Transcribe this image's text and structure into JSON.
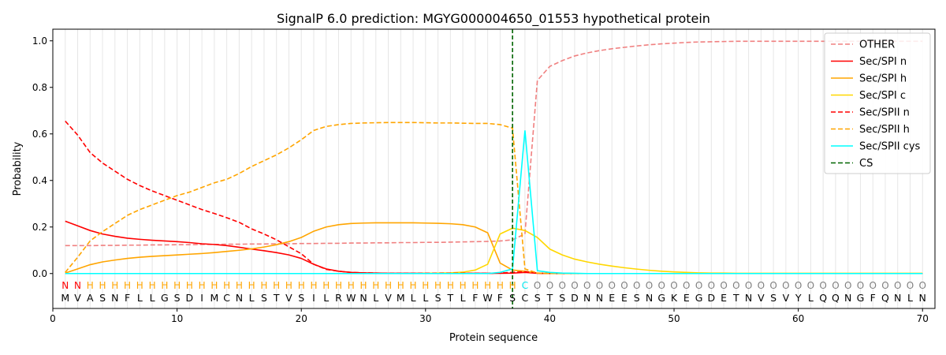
{
  "chart_data": {
    "type": "line",
    "title": "SignalP 6.0 prediction: MGYG000004650_01553 hypothetical protein",
    "xlabel": "Protein sequence",
    "ylabel": "Probability",
    "xlim": [
      0,
      71
    ],
    "ylim": [
      -0.15,
      1.05
    ],
    "x_ticks": [
      0,
      10,
      20,
      30,
      40,
      50,
      60,
      70
    ],
    "y_ticks": [
      0.0,
      0.2,
      0.4,
      0.6,
      0.8,
      1.0
    ],
    "x_tick_labels": [
      "0",
      "10",
      "20",
      "30",
      "40",
      "50",
      "60",
      "70"
    ],
    "y_tick_labels": [
      "0.0",
      "0.2",
      "0.4",
      "0.6",
      "0.8",
      "1.0"
    ],
    "grid": "vertical lines at each residue",
    "legend_position": "top-right",
    "sequence": [
      "M",
      "V",
      "A",
      "S",
      "N",
      "F",
      "L",
      "L",
      "G",
      "S",
      "D",
      "I",
      "M",
      "C",
      "N",
      "L",
      "S",
      "T",
      "V",
      "S",
      "I",
      "L",
      "R",
      "W",
      "N",
      "L",
      "V",
      "M",
      "L",
      "L",
      "S",
      "T",
      "L",
      "F",
      "W",
      "F",
      "S",
      "C",
      "S",
      "T",
      "S",
      "D",
      "N",
      "N",
      "E",
      "E",
      "S",
      "N",
      "G",
      "K",
      "E",
      "G",
      "D",
      "E",
      "T",
      "N",
      "V",
      "S",
      "V",
      "Y",
      "L",
      "Q",
      "Q",
      "N",
      "G",
      "F",
      "Q",
      "N",
      "L",
      "N"
    ],
    "region_labels": [
      "N",
      "N",
      "H",
      "H",
      "H",
      "H",
      "H",
      "H",
      "H",
      "H",
      "H",
      "H",
      "H",
      "H",
      "H",
      "H",
      "H",
      "H",
      "H",
      "H",
      "H",
      "H",
      "H",
      "H",
      "H",
      "H",
      "H",
      "H",
      "H",
      "H",
      "H",
      "H",
      "H",
      "H",
      "H",
      "H",
      "H",
      "C",
      "O",
      "O",
      "O",
      "O",
      "O",
      "O",
      "O",
      "O",
      "O",
      "O",
      "O",
      "O",
      "O",
      "O",
      "O",
      "O",
      "O",
      "O",
      "O",
      "O",
      "O",
      "O",
      "O",
      "O",
      "O",
      "O",
      "O",
      "O",
      "O",
      "O",
      "O",
      "O"
    ],
    "region_colors": {
      "N": "#ff0000",
      "H": "#ffa500",
      "C": "#00e5ee",
      "O": "#808080"
    },
    "cleavage_site": 37,
    "series": [
      {
        "name": "OTHER",
        "color": "#f08080",
        "dash": "dashed",
        "values": [
          0.12,
          0.12,
          0.12,
          0.121,
          0.121,
          0.122,
          0.122,
          0.123,
          0.123,
          0.124,
          0.124,
          0.125,
          0.125,
          0.126,
          0.126,
          0.127,
          0.127,
          0.128,
          0.128,
          0.129,
          0.129,
          0.13,
          0.13,
          0.131,
          0.131,
          0.132,
          0.132,
          0.133,
          0.133,
          0.134,
          0.134,
          0.135,
          0.136,
          0.137,
          0.138,
          0.14,
          0.145,
          0.17,
          0.83,
          0.89,
          0.915,
          0.935,
          0.948,
          0.958,
          0.966,
          0.972,
          0.978,
          0.983,
          0.987,
          0.99,
          0.993,
          0.995,
          0.996,
          0.997,
          0.998,
          0.998,
          0.998,
          0.998,
          0.998,
          0.998,
          0.998,
          0.998,
          0.998,
          0.998,
          0.998,
          0.998,
          0.998,
          0.998,
          0.998,
          0.998
        ]
      },
      {
        "name": "Sec/SPI n",
        "color": "#ff0000",
        "dash": "solid",
        "values": [
          0.225,
          0.205,
          0.185,
          0.17,
          0.16,
          0.152,
          0.147,
          0.143,
          0.14,
          0.137,
          0.133,
          0.128,
          0.125,
          0.12,
          0.113,
          0.105,
          0.098,
          0.09,
          0.08,
          0.065,
          0.04,
          0.02,
          0.01,
          0.005,
          0.003,
          0.002,
          0.001,
          0.001,
          0.001,
          0.001,
          0.001,
          0.001,
          0.001,
          0.001,
          0.001,
          0.001,
          0.002,
          0.005,
          0.001,
          0,
          0,
          0,
          0,
          0,
          0,
          0,
          0,
          0,
          0,
          0,
          0,
          0,
          0,
          0,
          0,
          0,
          0,
          0,
          0,
          0,
          0,
          0,
          0,
          0,
          0,
          0,
          0,
          0,
          0,
          0
        ]
      },
      {
        "name": "Sec/SPI h",
        "color": "#ffa500",
        "dash": "solid",
        "values": [
          0.002,
          0.02,
          0.038,
          0.05,
          0.058,
          0.065,
          0.07,
          0.074,
          0.077,
          0.08,
          0.083,
          0.086,
          0.09,
          0.095,
          0.1,
          0.106,
          0.114,
          0.124,
          0.137,
          0.155,
          0.182,
          0.2,
          0.21,
          0.215,
          0.217,
          0.218,
          0.218,
          0.218,
          0.218,
          0.217,
          0.216,
          0.214,
          0.21,
          0.2,
          0.175,
          0.045,
          0.015,
          0.01,
          0.002,
          0,
          0,
          0,
          0,
          0,
          0,
          0,
          0,
          0,
          0,
          0,
          0,
          0,
          0,
          0,
          0,
          0,
          0,
          0,
          0,
          0,
          0,
          0,
          0,
          0,
          0,
          0,
          0,
          0,
          0,
          0
        ]
      },
      {
        "name": "Sec/SPI c",
        "color": "#ffd700",
        "dash": "solid",
        "values": [
          0,
          0,
          0,
          0,
          0,
          0,
          0,
          0,
          0,
          0,
          0,
          0,
          0,
          0,
          0,
          0,
          0,
          0,
          0,
          0,
          0,
          0,
          0,
          0,
          0,
          0,
          0,
          0,
          0,
          0.001,
          0.002,
          0.003,
          0.006,
          0.015,
          0.04,
          0.17,
          0.195,
          0.185,
          0.155,
          0.105,
          0.08,
          0.062,
          0.05,
          0.04,
          0.032,
          0.025,
          0.019,
          0.014,
          0.01,
          0.007,
          0.005,
          0.003,
          0.002,
          0.002,
          0.001,
          0.001,
          0.001,
          0.001,
          0.001,
          0.001,
          0.001,
          0.001,
          0.001,
          0.001,
          0.001,
          0.001,
          0.001,
          0.001,
          0.001,
          0.001
        ]
      },
      {
        "name": "Sec/SPII n",
        "color": "#ff0000",
        "dash": "dashed",
        "values": [
          0.655,
          0.595,
          0.52,
          0.475,
          0.44,
          0.405,
          0.378,
          0.355,
          0.335,
          0.315,
          0.295,
          0.275,
          0.258,
          0.24,
          0.22,
          0.192,
          0.17,
          0.145,
          0.115,
          0.085,
          0.04,
          0.018,
          0.01,
          0.005,
          0.003,
          0.002,
          0.001,
          0.001,
          0.001,
          0.001,
          0.001,
          0.001,
          0.001,
          0.001,
          0.001,
          0.002,
          0.005,
          0.008,
          0.002,
          0,
          0,
          0,
          0,
          0,
          0,
          0,
          0,
          0,
          0,
          0,
          0,
          0,
          0,
          0,
          0,
          0,
          0,
          0,
          0,
          0,
          0,
          0,
          0,
          0,
          0,
          0,
          0,
          0,
          0,
          0
        ]
      },
      {
        "name": "Sec/SPII h",
        "color": "#ffa500",
        "dash": "dashed",
        "values": [
          0.005,
          0.07,
          0.14,
          0.18,
          0.215,
          0.25,
          0.275,
          0.295,
          0.315,
          0.335,
          0.35,
          0.37,
          0.39,
          0.405,
          0.43,
          0.46,
          0.485,
          0.51,
          0.54,
          0.575,
          0.615,
          0.632,
          0.64,
          0.645,
          0.647,
          0.648,
          0.649,
          0.649,
          0.649,
          0.648,
          0.647,
          0.647,
          0.646,
          0.645,
          0.645,
          0.64,
          0.625,
          0.02,
          0.002,
          0,
          0,
          0,
          0,
          0,
          0,
          0,
          0,
          0,
          0,
          0,
          0,
          0,
          0,
          0,
          0,
          0,
          0,
          0,
          0,
          0,
          0,
          0,
          0,
          0,
          0,
          0,
          0,
          0,
          0,
          0
        ]
      },
      {
        "name": "Sec/SPII cys",
        "color": "#00ffff",
        "dash": "solid",
        "values": [
          0,
          0,
          0,
          0,
          0,
          0,
          0,
          0,
          0,
          0,
          0,
          0,
          0,
          0,
          0,
          0,
          0,
          0,
          0,
          0,
          0,
          0,
          0,
          0,
          0,
          0,
          0,
          0,
          0,
          0,
          0,
          0,
          0,
          0,
          0,
          0.005,
          0.02,
          0.615,
          0.012,
          0.005,
          0.002,
          0.001,
          0,
          0,
          0,
          0,
          0,
          0,
          0,
          0,
          0,
          0,
          0,
          0,
          0,
          0,
          0,
          0,
          0,
          0,
          0,
          0,
          0,
          0,
          0,
          0,
          0,
          0,
          0,
          0
        ]
      },
      {
        "name": "CS",
        "color": "#006400",
        "dash": "dashed"
      }
    ]
  }
}
